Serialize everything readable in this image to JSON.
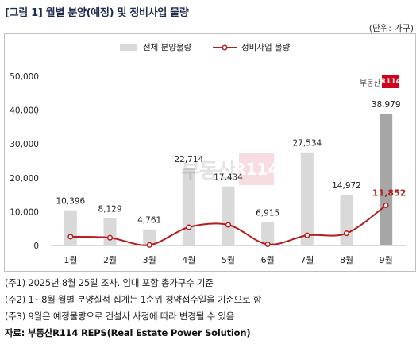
{
  "header": {
    "title": "[그림 1] 월별 분양(예정) 및 정비사업 물량",
    "unit": "(단위: 가구)"
  },
  "logo": {
    "text": "부동산",
    "box": "R114"
  },
  "watermark": {
    "text": "부동산",
    "box": "R114"
  },
  "chart_data": {
    "type": "bar",
    "categories": [
      "1월",
      "2월",
      "3월",
      "4월",
      "5월",
      "6월",
      "7월",
      "8월",
      "9월"
    ],
    "series": [
      {
        "name": "전체 분양물량",
        "type": "bar",
        "color": "#d9d9d9",
        "highlight_color": "#a6a6a6",
        "values": [
          10396,
          8129,
          4761,
          22714,
          17434,
          6915,
          27534,
          14972,
          38979
        ],
        "labels": [
          "10,396",
          "8,129",
          "4,761",
          "22,714",
          "17,434",
          "6,915",
          "27,534",
          "14,972",
          "38,979"
        ]
      },
      {
        "name": "정비사업 물량",
        "type": "line",
        "color": "#b71c1c",
        "values": [
          2600,
          2300,
          150,
          5400,
          6100,
          350,
          3000,
          3600,
          11852
        ],
        "labels": [
          "",
          "",
          "",
          "",
          "",
          "",
          "",
          "",
          "11,852"
        ]
      }
    ],
    "ylim": [
      0,
      50000
    ],
    "yticks": [
      0,
      10000,
      20000,
      30000,
      40000,
      50000
    ],
    "ytick_labels": [
      "0",
      "10,000",
      "20,000",
      "30,000",
      "40,000",
      "50,000"
    ],
    "legend": "top-center",
    "grid": false
  },
  "notes": [
    "(주1) 2025년 8월 25일 조사. 임대 포함 총가구수 기준",
    "(주2) 1~8월 월별 분양실적 집계는 1순위 청약접수일을 기준으로 함",
    "(주3) 9월은 예정물량으로 건설사 사정에 따라 변경될 수 있음"
  ],
  "source": "자료: 부동산R114 REPS(Real Estate Power Solution)"
}
